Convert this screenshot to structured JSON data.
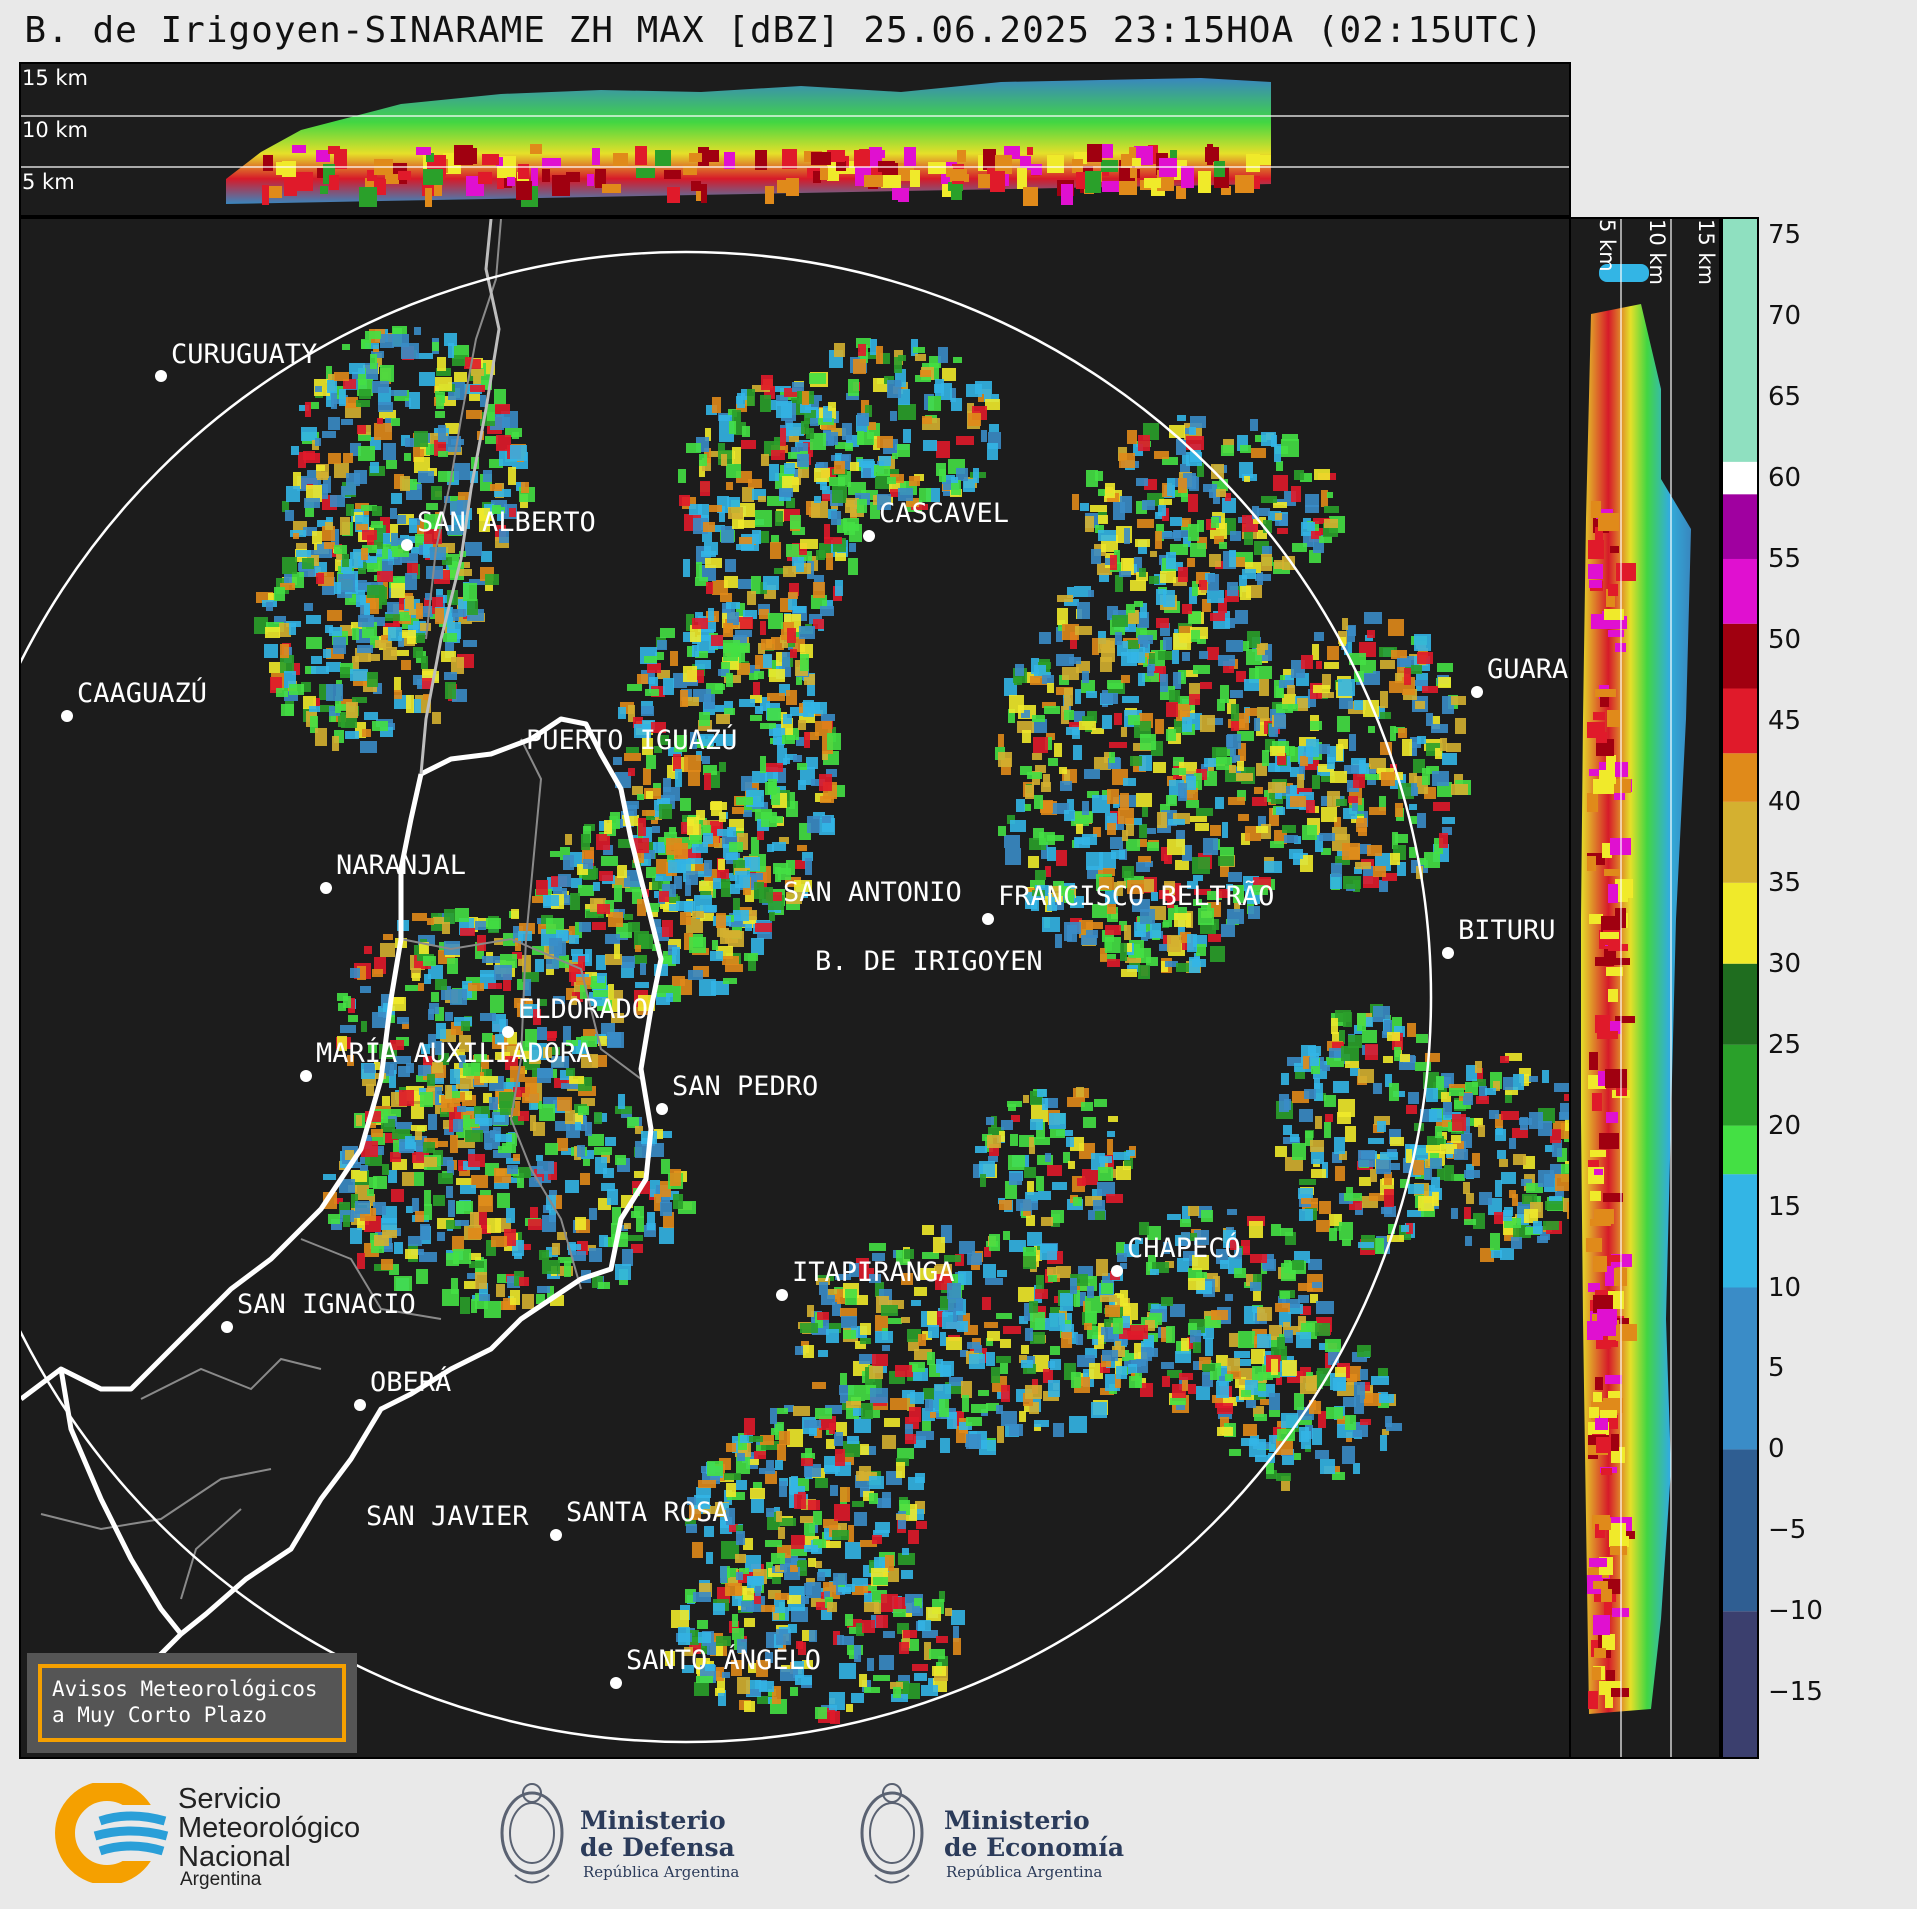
{
  "title": "B. de Irigoyen-SINARAME ZH MAX [dBZ] 25.06.2025 23:15HOA (02:15UTC)",
  "top_panel": {
    "km_labels": [
      "15 km",
      "10 km",
      "5 km"
    ]
  },
  "side_panel": {
    "km_labels": [
      "5 km",
      "10 km",
      "15 km"
    ]
  },
  "colorbar": {
    "ticks": [
      "75",
      "70",
      "65",
      "60",
      "55",
      "50",
      "45",
      "40",
      "35",
      "30",
      "25",
      "20",
      "15",
      "10",
      "5",
      "0",
      "−5",
      "−10",
      "−15"
    ],
    "range": [
      -19,
      76
    ],
    "colors": {
      "deep": "#3b3f6e",
      "blue_dark": "#2f5e92",
      "blue": "#3a8cc7",
      "cyan": "#33b5e5",
      "green_light": "#44e044",
      "green": "#2aa02a",
      "green_dark": "#1f6d1f",
      "yellow": "#f0ea2a",
      "gold": "#d4b030",
      "orange": "#e08a1a",
      "red": "#e01a2a",
      "dark_red": "#a00010",
      "magenta": "#e010d0",
      "purple": "#a000a0",
      "white": "#ffffff",
      "mint": "#8fe0c0"
    }
  },
  "cities": [
    {
      "name": "CURUGUATY"
    },
    {
      "name": "SAN ALBERTO"
    },
    {
      "name": "CASCAVEL"
    },
    {
      "name": "CAAGUAZÚ"
    },
    {
      "name": "GUARA"
    },
    {
      "name": "PUERTO IGUAZÚ"
    },
    {
      "name": "NARANJAL"
    },
    {
      "name": "SAN ANTONIO"
    },
    {
      "name": "FRANCISCO BELTRÃO"
    },
    {
      "name": "BITURU"
    },
    {
      "name": "B. DE IRIGOYEN"
    },
    {
      "name": "ELDORADO"
    },
    {
      "name": "MARÍA AUXILIADORA"
    },
    {
      "name": "SAN PEDRO"
    },
    {
      "name": "CHAPECÓ"
    },
    {
      "name": "ITAPIRANGA"
    },
    {
      "name": "SAN IGNACIO"
    },
    {
      "name": "OBERÁ"
    },
    {
      "name": "SAN JAVIER"
    },
    {
      "name": "SANTA ROSA"
    },
    {
      "name": "SANTO ÁNGELO"
    }
  ],
  "legend": {
    "line1": "Avisos Meteorológicos",
    "line2": "a Muy Corto Plazo"
  },
  "footer": {
    "smn": {
      "line1": "Servicio",
      "line2": "Meteorológico",
      "line3": "Nacional",
      "sub": "Argentina",
      "accent": "#f5a000",
      "wave": "#2a9fd8"
    },
    "defensa": {
      "line1": "Ministerio",
      "line2": "de Defensa",
      "sub": "República Argentina"
    },
    "economia": {
      "line1": "Ministerio",
      "line2": "de Economía",
      "sub": "República Argentina"
    }
  }
}
